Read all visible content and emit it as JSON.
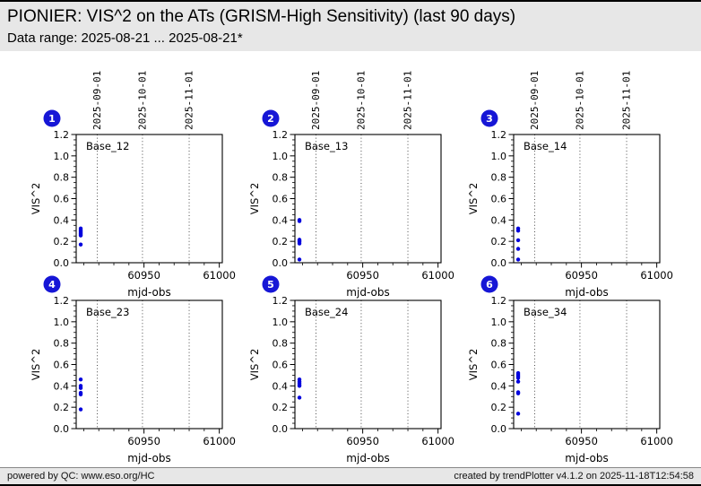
{
  "header": {
    "title": "PIONIER: VIS^2 on the ATs (GRISM-High Sensitivity) (last 90 days)",
    "subtitle": "Data range: 2025-08-21 ... 2025-08-21*"
  },
  "footer": {
    "left": "powered by QC: www.eso.org/HC",
    "right": "created by trendPlotter v4.1.2 on 2025-11-18T12:54:58"
  },
  "colors": {
    "point": "#0000dd",
    "badge": "#1616d6",
    "badge_text": "#ffffff",
    "gridline": "#3a3a3a",
    "axis": "#000000",
    "plot_bg": "#ffffff",
    "band_bg": "#e7e7e7"
  },
  "chart_data": [
    {
      "type": "scatter",
      "badge": "1",
      "title": "Base_12",
      "xlabel": "mjd-obs",
      "ylabel": "VIS^2",
      "xlim": [
        60905,
        61002
      ],
      "ylim": [
        0.0,
        1.2
      ],
      "xticks": [
        60950,
        61000
      ],
      "xtick_minor_step": 10,
      "ytick_step": 0.2,
      "ytick_minor_step": 0.05,
      "show_date_labels": true,
      "date_gridlines": [
        {
          "mjd": 60919,
          "label": "2025-09-01"
        },
        {
          "mjd": 60949,
          "label": "2025-10-01"
        },
        {
          "mjd": 60980,
          "label": "2025-11-01"
        }
      ],
      "points": [
        [
          60908,
          0.32
        ],
        [
          60908,
          0.305
        ],
        [
          60908,
          0.295
        ],
        [
          60908,
          0.285
        ],
        [
          60908,
          0.275
        ],
        [
          60908,
          0.265
        ],
        [
          60908,
          0.255
        ],
        [
          60908,
          0.17
        ]
      ]
    },
    {
      "type": "scatter",
      "badge": "2",
      "title": "Base_13",
      "xlabel": "mjd-obs",
      "ylabel": "VIS^2",
      "xlim": [
        60905,
        61002
      ],
      "ylim": [
        0.0,
        1.2
      ],
      "xticks": [
        60950,
        61000
      ],
      "xtick_minor_step": 10,
      "ytick_step": 0.2,
      "ytick_minor_step": 0.05,
      "show_date_labels": true,
      "date_gridlines": [
        {
          "mjd": 60919,
          "label": "2025-09-01"
        },
        {
          "mjd": 60949,
          "label": "2025-10-01"
        },
        {
          "mjd": 60980,
          "label": "2025-11-01"
        }
      ],
      "points": [
        [
          60908,
          0.4
        ],
        [
          60908,
          0.39
        ],
        [
          60908,
          0.215
        ],
        [
          60908,
          0.205
        ],
        [
          60908,
          0.195
        ],
        [
          60908,
          0.18
        ],
        [
          60908,
          0.03
        ]
      ]
    },
    {
      "type": "scatter",
      "badge": "3",
      "title": "Base_14",
      "xlabel": "mjd-obs",
      "ylabel": "VIS^2",
      "xlim": [
        60905,
        61002
      ],
      "ylim": [
        0.0,
        1.2
      ],
      "xticks": [
        60950,
        61000
      ],
      "xtick_minor_step": 10,
      "ytick_step": 0.2,
      "ytick_minor_step": 0.05,
      "show_date_labels": true,
      "date_gridlines": [
        {
          "mjd": 60919,
          "label": "2025-09-01"
        },
        {
          "mjd": 60949,
          "label": "2025-10-01"
        },
        {
          "mjd": 60980,
          "label": "2025-11-01"
        }
      ],
      "points": [
        [
          60908,
          0.32
        ],
        [
          60908,
          0.3
        ],
        [
          60908,
          0.21
        ],
        [
          60908,
          0.13
        ],
        [
          60908,
          0.03
        ]
      ]
    },
    {
      "type": "scatter",
      "badge": "4",
      "title": "Base_23",
      "xlabel": "mjd-obs",
      "ylabel": "VIS^2",
      "xlim": [
        60905,
        61002
      ],
      "ylim": [
        0.0,
        1.2
      ],
      "xticks": [
        60950,
        61000
      ],
      "xtick_minor_step": 10,
      "ytick_step": 0.2,
      "ytick_minor_step": 0.05,
      "show_date_labels": false,
      "date_gridlines": [
        {
          "mjd": 60919,
          "label": "2025-09-01"
        },
        {
          "mjd": 60949,
          "label": "2025-10-01"
        },
        {
          "mjd": 60980,
          "label": "2025-11-01"
        }
      ],
      "points": [
        [
          60908,
          0.46
        ],
        [
          60908,
          0.4
        ],
        [
          60908,
          0.38
        ],
        [
          60908,
          0.335
        ],
        [
          60908,
          0.32
        ],
        [
          60908,
          0.18
        ]
      ]
    },
    {
      "type": "scatter",
      "badge": "5",
      "title": "Base_24",
      "xlabel": "mjd-obs",
      "ylabel": "VIS^2",
      "xlim": [
        60905,
        61002
      ],
      "ylim": [
        0.0,
        1.2
      ],
      "xticks": [
        60950,
        61000
      ],
      "xtick_minor_step": 10,
      "ytick_step": 0.2,
      "ytick_minor_step": 0.05,
      "show_date_labels": false,
      "date_gridlines": [
        {
          "mjd": 60919,
          "label": "2025-09-01"
        },
        {
          "mjd": 60949,
          "label": "2025-10-01"
        },
        {
          "mjd": 60980,
          "label": "2025-11-01"
        }
      ],
      "points": [
        [
          60908,
          0.46
        ],
        [
          60908,
          0.44
        ],
        [
          60908,
          0.425
        ],
        [
          60908,
          0.41
        ],
        [
          60908,
          0.4
        ],
        [
          60908,
          0.29
        ]
      ]
    },
    {
      "type": "scatter",
      "badge": "6",
      "title": "Base_34",
      "xlabel": "mjd-obs",
      "ylabel": "VIS^2",
      "xlim": [
        60905,
        61002
      ],
      "ylim": [
        0.0,
        1.2
      ],
      "xticks": [
        60950,
        61000
      ],
      "xtick_minor_step": 10,
      "ytick_step": 0.2,
      "ytick_minor_step": 0.05,
      "show_date_labels": false,
      "date_gridlines": [
        {
          "mjd": 60919,
          "label": "2025-09-01"
        },
        {
          "mjd": 60949,
          "label": "2025-10-01"
        },
        {
          "mjd": 60980,
          "label": "2025-11-01"
        }
      ],
      "points": [
        [
          60908,
          0.52
        ],
        [
          60908,
          0.505
        ],
        [
          60908,
          0.49
        ],
        [
          60908,
          0.475
        ],
        [
          60908,
          0.44
        ],
        [
          60908,
          0.34
        ],
        [
          60908,
          0.33
        ],
        [
          60908,
          0.14
        ]
      ]
    }
  ]
}
